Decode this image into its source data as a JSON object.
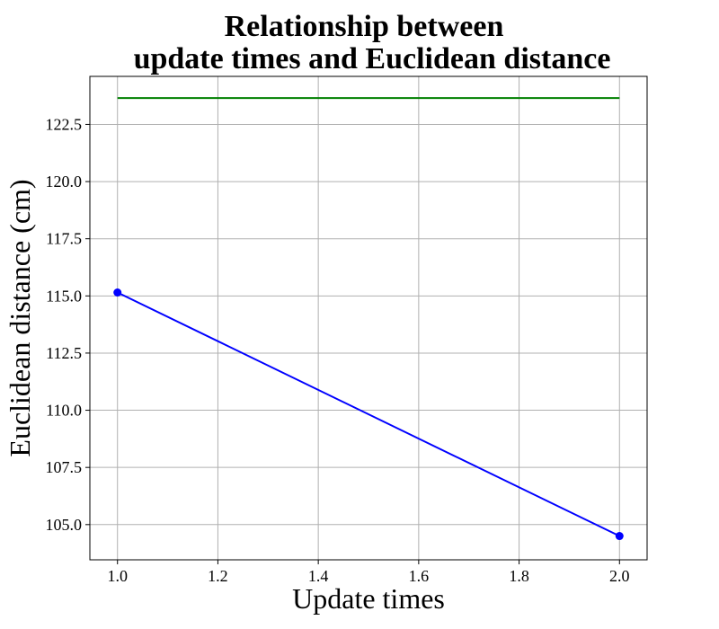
{
  "chart_data": {
    "type": "line",
    "title_lines": [
      "Relationship between",
      "update times and Euclidean distance"
    ],
    "xlabel": "Update times",
    "ylabel": "Euclidean distance (cm)",
    "xlim": [
      0.945,
      2.055
    ],
    "ylim": [
      103.46,
      124.6
    ],
    "xticks": [
      1.0,
      1.2,
      1.4,
      1.6,
      1.8,
      2.0
    ],
    "xtick_labels": [
      "1.0",
      "1.2",
      "1.4",
      "1.6",
      "1.8",
      "2.0"
    ],
    "yticks": [
      105.0,
      107.5,
      110.0,
      112.5,
      115.0,
      117.5,
      120.0,
      122.5
    ],
    "ytick_labels": [
      "105.0",
      "107.5",
      "110.0",
      "112.5",
      "115.0",
      "117.5",
      "120.0",
      "122.5"
    ],
    "grid": true,
    "series": [
      {
        "type": "line",
        "markers": true,
        "color": "#0000ff",
        "x": [
          1.0,
          2.0
        ],
        "y": [
          115.15,
          104.5
        ]
      },
      {
        "type": "line",
        "markers": false,
        "color": "#008000",
        "x": [
          1.0,
          2.0
        ],
        "y": [
          123.65,
          123.65
        ]
      }
    ]
  }
}
